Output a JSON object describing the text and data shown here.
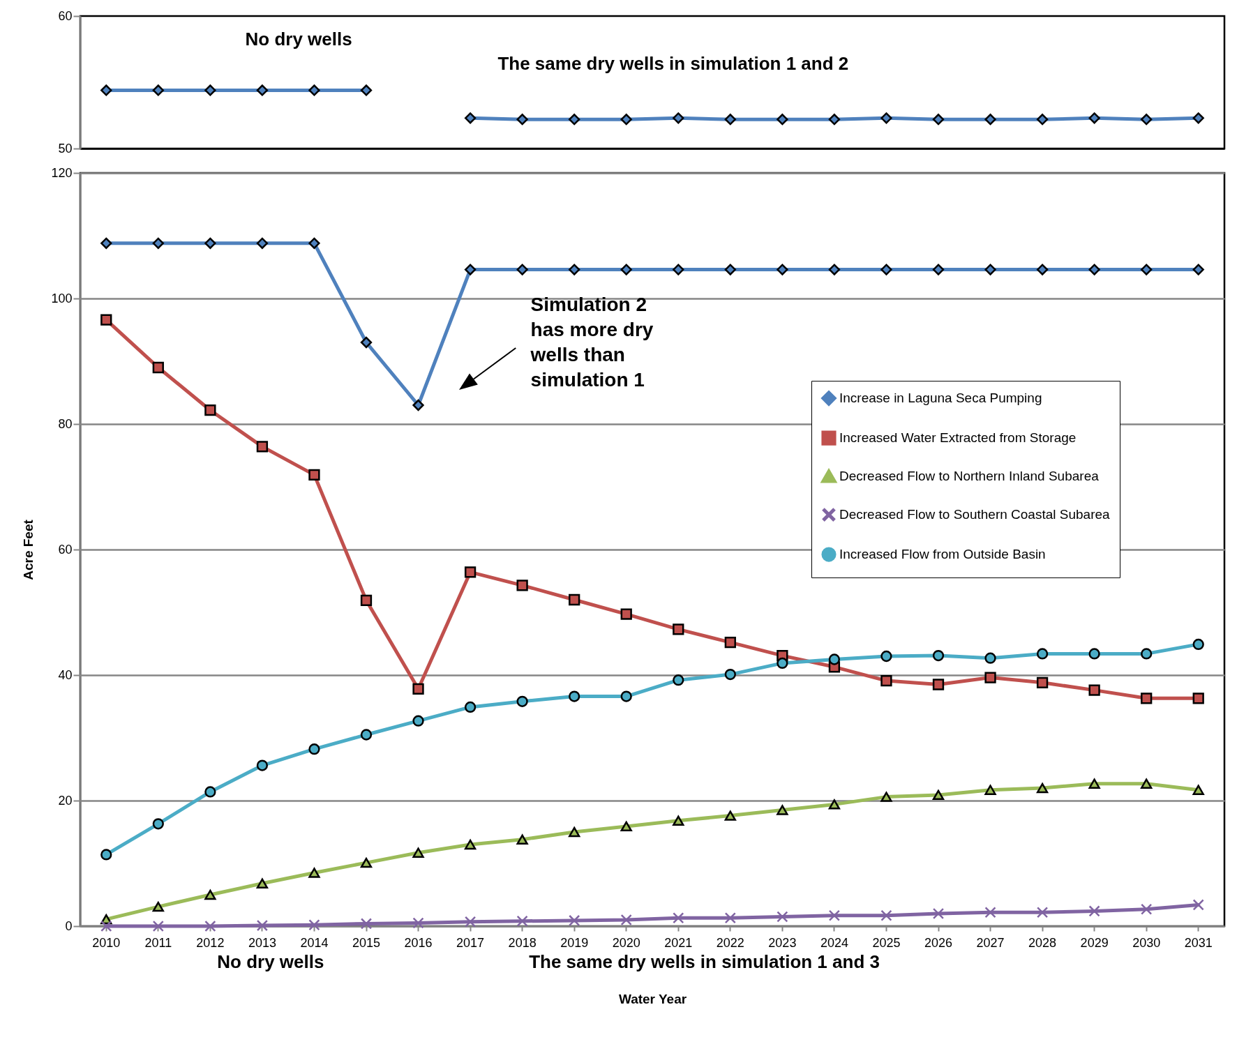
{
  "chart_data": [
    {
      "type": "line",
      "categories": [
        null,
        null,
        null,
        null,
        null,
        null,
        null,
        null,
        null,
        null,
        null,
        null,
        null,
        null,
        null,
        null,
        null,
        null,
        null,
        null,
        null,
        null
      ],
      "series": [
        {
          "color": "#4f81bd",
          "marker": "diamond",
          "values": [
            54.4,
            54.4,
            54.4,
            54.4,
            54.4,
            54.4,
            null,
            null,
            null,
            null,
            null,
            null,
            null,
            null,
            null,
            null,
            null,
            null,
            null,
            null,
            null,
            null
          ]
        },
        {
          "color": "#4f81bd",
          "marker": "diamond",
          "values": [
            null,
            null,
            null,
            null,
            null,
            null,
            null,
            52.3,
            52.2,
            52.2,
            52.2,
            52.3,
            52.2,
            52.2,
            52.2,
            52.3,
            52.2,
            52.2,
            52.2,
            52.3,
            52.2,
            52.3
          ]
        }
      ],
      "ylim": [
        50,
        60
      ],
      "yticks": [
        50,
        60
      ],
      "tick_labels": "y",
      "annotations": [
        "No dry wells",
        "The same dry wells in simulation 1 and 2"
      ]
    },
    {
      "type": "line",
      "xlabel": "Water Year",
      "ylabel": "Acre Feet",
      "categories": [
        "2010",
        "2011",
        "2012",
        "2013",
        "2014",
        "2015",
        "2016",
        "2017",
        "2018",
        "2019",
        "2020",
        "2021",
        "2022",
        "2023",
        "2024",
        "2025",
        "2026",
        "2027",
        "2028",
        "2029",
        "2030",
        "2031"
      ],
      "series": [
        {
          "name": "Increase in Laguna Seca Pumping",
          "color": "#4f81bd",
          "marker": "diamond",
          "values": [
            108.8,
            108.8,
            108.8,
            108.8,
            108.8,
            93.0,
            83.0,
            104.6,
            104.6,
            104.6,
            104.6,
            104.6,
            104.6,
            104.6,
            104.6,
            104.6,
            104.6,
            104.6,
            104.6,
            104.6,
            104.6,
            104.6
          ]
        },
        {
          "name": "Increased Water Extracted from Storage",
          "color": "#c0504d",
          "marker": "square",
          "values": [
            96.6,
            89.0,
            82.2,
            76.4,
            71.9,
            51.9,
            37.8,
            56.4,
            54.3,
            52.0,
            49.7,
            47.3,
            45.2,
            43.1,
            41.3,
            39.1,
            38.5,
            39.6,
            38.8,
            37.6,
            36.3,
            36.3
          ]
        },
        {
          "name": "Decreased Flow to Northern Inland Subarea",
          "color": "#9bbb59",
          "marker": "triangle",
          "values": [
            1.1,
            3.1,
            5.0,
            6.8,
            8.5,
            10.1,
            11.7,
            13.0,
            13.8,
            15.0,
            15.9,
            16.8,
            17.6,
            18.5,
            19.4,
            20.6,
            20.9,
            21.7,
            22.0,
            22.7,
            22.7,
            21.7
          ]
        },
        {
          "name": "Decreased Flow to Southern Coastal Subarea",
          "color": "#8064a2",
          "marker": "cross",
          "values": [
            0,
            0,
            0,
            0.1,
            0.2,
            0.4,
            0.5,
            0.7,
            0.8,
            0.9,
            1.0,
            1.3,
            1.3,
            1.5,
            1.7,
            1.7,
            2.0,
            2.2,
            2.2,
            2.4,
            2.7,
            3.4
          ]
        },
        {
          "name": "Increased Flow from Outside Basin",
          "color": "#4bacc6",
          "marker": "circle",
          "values": [
            11.4,
            16.3,
            21.4,
            25.6,
            28.2,
            30.5,
            32.7,
            34.9,
            35.8,
            36.6,
            36.6,
            39.2,
            40.1,
            41.9,
            42.5,
            43.0,
            43.1,
            42.7,
            43.4,
            43.4,
            43.4,
            44.9
          ]
        }
      ],
      "ylim": [
        0,
        120
      ],
      "yticks": [
        0,
        20,
        40,
        60,
        80,
        100,
        120
      ],
      "grid": "y",
      "legend": "right",
      "annotations": [
        "Simulation 2 has more dry wells than simulation 1",
        "No dry wells",
        "The same dry wells in simulation 1 and 3"
      ]
    }
  ]
}
